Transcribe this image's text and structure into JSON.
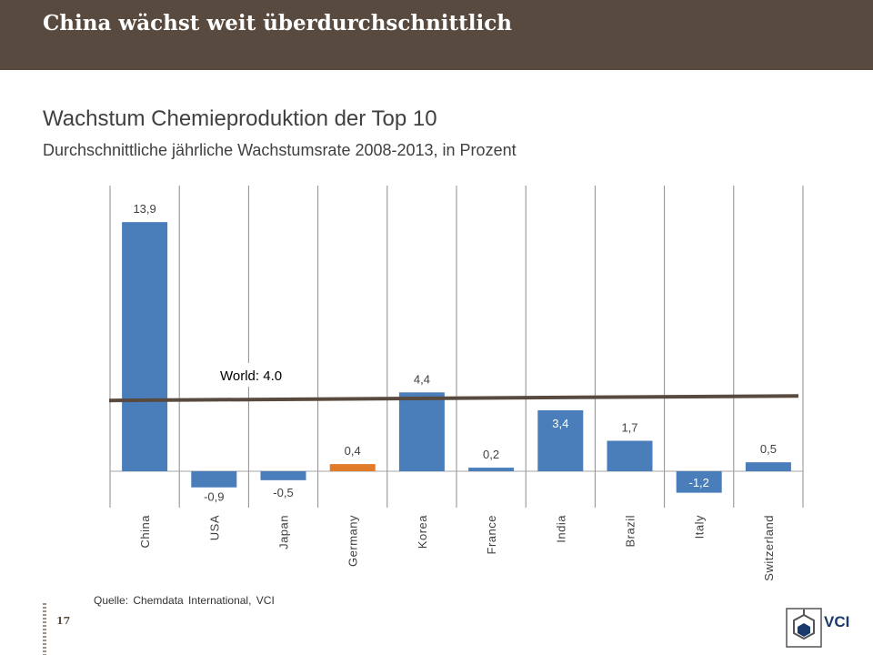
{
  "header": {
    "title": "China wächst weit überdurchschnittlich"
  },
  "main": {
    "title": "Wachstum Chemieproduktion der Top 10",
    "subtitle": "Durchschnittliche jährliche Wachstumsrate 2008-2013, in Prozent"
  },
  "chart_data": {
    "type": "bar",
    "categories": [
      "China",
      "USA",
      "Japan",
      "Germany",
      "Korea",
      "France",
      "India",
      "Brazil",
      "Italy",
      "Switzerland"
    ],
    "values": [
      13.9,
      -0.9,
      -0.5,
      0.4,
      4.4,
      0.2,
      3.4,
      1.7,
      -1.2,
      0.5
    ],
    "data_labels": [
      "13,9",
      "-0,9",
      "-0,5",
      "0,4",
      "4,4",
      "0,2",
      "3,4",
      "1,7",
      "-1,2",
      "0,5"
    ],
    "highlight_category": "Germany",
    "ylim": [
      -2,
      16
    ],
    "reference_line": {
      "label": "World: 4.0",
      "value": 4.0,
      "color": "#594a3f"
    },
    "grid": "vertical",
    "colors": {
      "bar": "#4a7ebb",
      "highlight": "#e07b2a"
    }
  },
  "footer": {
    "source": "Quelle: Chemdata International, VCI",
    "page_number": "17",
    "logo_text": "VCI",
    "logo_icon": "vci-hexagon-logo-icon"
  }
}
